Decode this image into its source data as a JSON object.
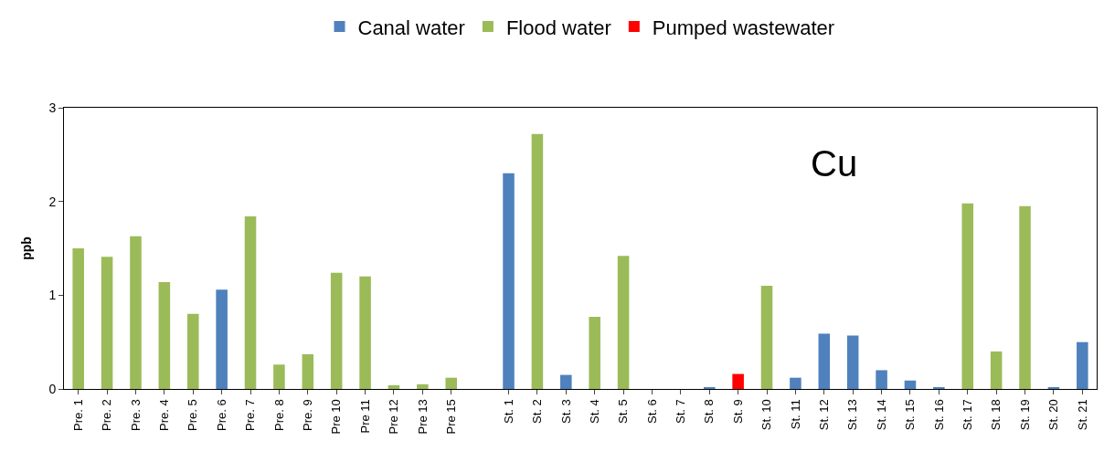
{
  "chart_data": {
    "type": "bar",
    "ylabel": "ppb",
    "annotations": [
      "Cu"
    ],
    "categories": [
      "Pre. 1",
      "Pre. 2",
      "Pre. 3",
      "Pre. 4",
      "Pre. 5",
      "Pre. 6",
      "Pre. 7",
      "Pre. 8",
      "Pre. 9",
      "Pre 10",
      "Pre 11",
      "Pre 12",
      "Pre 13",
      "Pre 15",
      null,
      "St. 1",
      "St. 2",
      "St. 3",
      "St. 4",
      "St. 5",
      "St. 6",
      "St. 7",
      "St. 8",
      "St. 9",
      "St. 10",
      "St. 11",
      "St. 12",
      "St. 13",
      "St. 14",
      "St. 15",
      "St. 16",
      "St. 17",
      "St. 18",
      "St. 19",
      "St. 20",
      "St. 21"
    ],
    "series": [
      {
        "name": "Canal water",
        "color": "#4f81bd",
        "values": [
          null,
          null,
          null,
          null,
          null,
          1.06,
          null,
          null,
          null,
          null,
          null,
          null,
          null,
          null,
          null,
          2.3,
          null,
          0.15,
          null,
          null,
          null,
          null,
          0.02,
          null,
          null,
          0.12,
          0.59,
          0.57,
          0.2,
          0.09,
          0.02,
          null,
          null,
          null,
          0.02,
          0.5
        ]
      },
      {
        "name": "Flood water",
        "color": "#9bbb59",
        "values": [
          1.5,
          1.41,
          1.63,
          1.14,
          0.8,
          null,
          1.84,
          0.26,
          0.37,
          1.24,
          1.2,
          0.04,
          0.05,
          0.12,
          null,
          null,
          2.72,
          null,
          0.77,
          1.42,
          0,
          0,
          null,
          null,
          1.1,
          null,
          null,
          null,
          null,
          null,
          null,
          1.98,
          0.4,
          1.95,
          null,
          null
        ]
      },
      {
        "name": "Pumped wastewater",
        "color": "#ff0000",
        "values": [
          null,
          null,
          null,
          null,
          null,
          null,
          null,
          null,
          null,
          null,
          null,
          null,
          null,
          null,
          null,
          null,
          null,
          null,
          null,
          null,
          null,
          null,
          null,
          0.16,
          null,
          null,
          null,
          null,
          null,
          null,
          null,
          null,
          null,
          null,
          null,
          null
        ]
      }
    ],
    "ylim": [
      0,
      3
    ],
    "yticks": [
      0,
      1,
      2,
      3
    ],
    "legend": "top"
  }
}
